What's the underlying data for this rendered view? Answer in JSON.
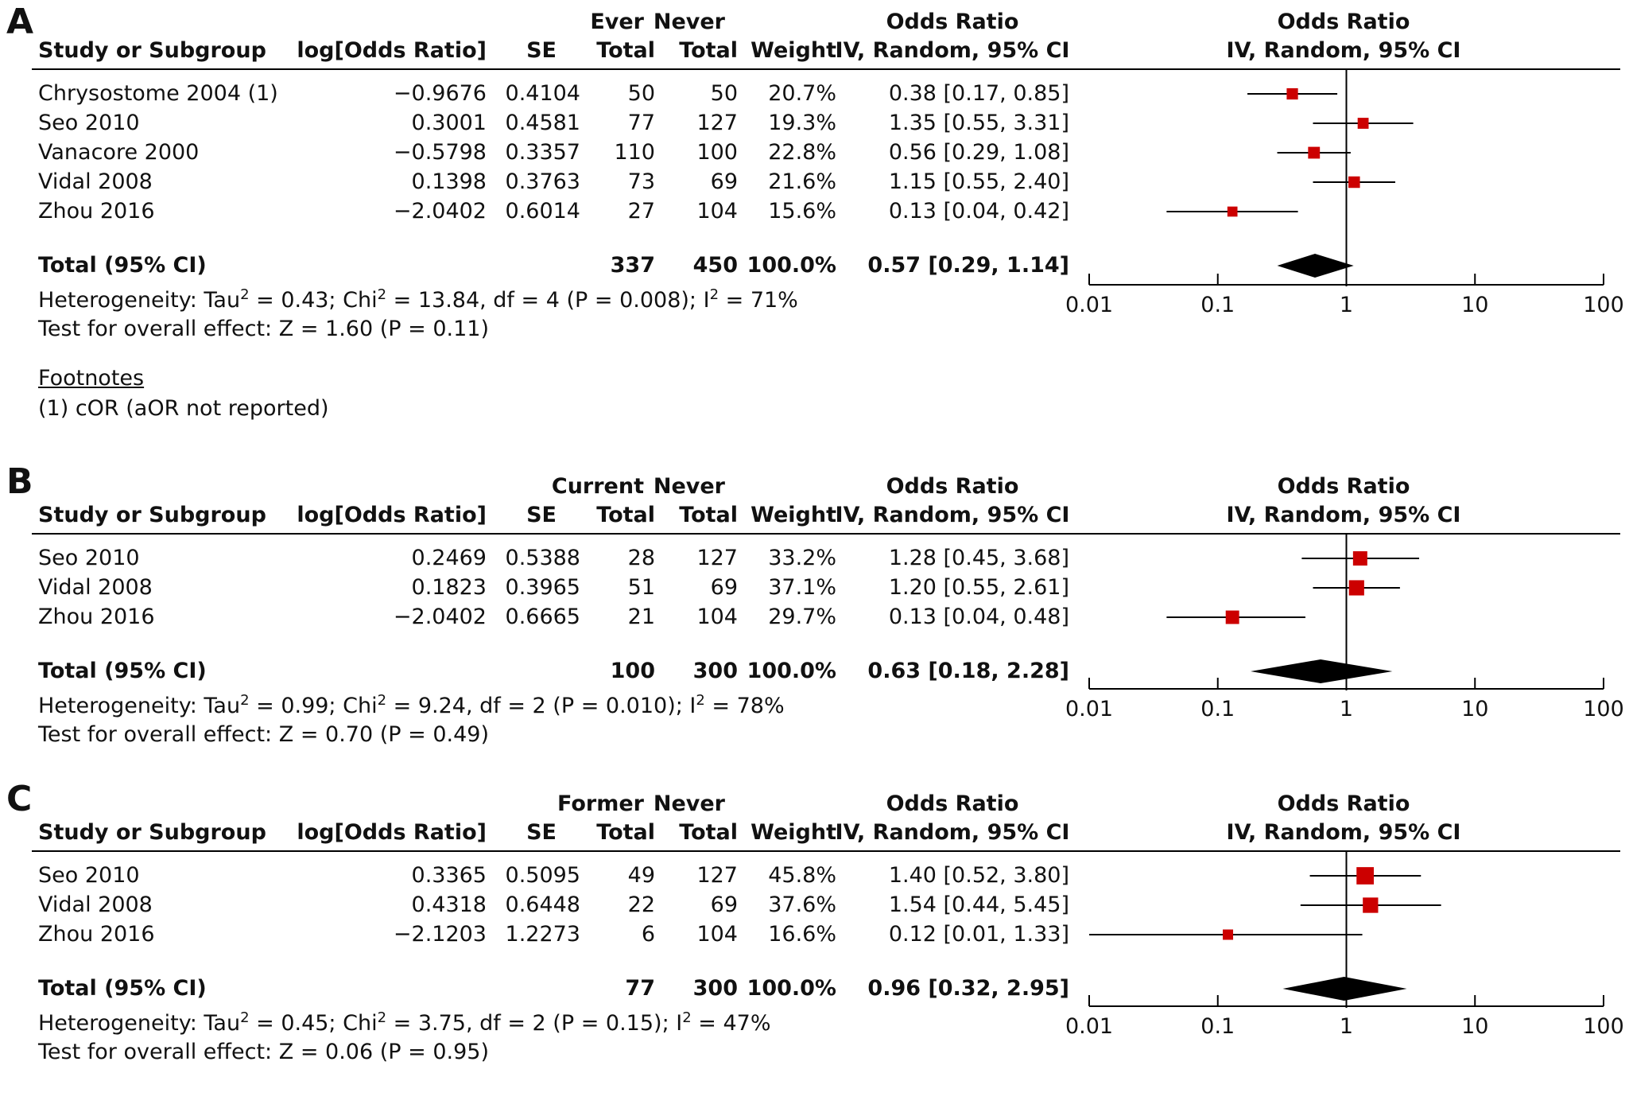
{
  "panels": [
    {
      "letter": "A",
      "group_label": "Ever",
      "comparison_label": "Never",
      "headers": {
        "study": "Study or Subgroup",
        "logor": "log[Odds Ratio]",
        "se": "SE",
        "total": "Total",
        "total2": "Total",
        "weight": "Weight",
        "or_title": "Odds Ratio",
        "or_method": "IV, Random, 95% CI",
        "plot_title": "Odds Ratio",
        "plot_method": "IV, Random, 95% CI"
      },
      "rows": [
        {
          "study": "Chrysostome 2004 (1)",
          "logor": "−0.9676",
          "se": "0.4104",
          "exp_total": "50",
          "ctrl_total": "50",
          "weight": "20.7%",
          "ci_text": "0.38 [0.17, 0.85]"
        },
        {
          "study": "Seo 2010",
          "logor": "0.3001",
          "se": "0.4581",
          "exp_total": "77",
          "ctrl_total": "127",
          "weight": "19.3%",
          "ci_text": "1.35 [0.55, 3.31]"
        },
        {
          "study": "Vanacore 2000",
          "logor": "−0.5798",
          "se": "0.3357",
          "exp_total": "110",
          "ctrl_total": "100",
          "weight": "22.8%",
          "ci_text": "0.56 [0.29, 1.08]"
        },
        {
          "study": "Vidal 2008",
          "logor": "0.1398",
          "se": "0.3763",
          "exp_total": "73",
          "ctrl_total": "69",
          "weight": "21.6%",
          "ci_text": "1.15 [0.55, 2.40]"
        },
        {
          "study": "Zhou 2016",
          "logor": "−2.0402",
          "se": "0.6014",
          "exp_total": "27",
          "ctrl_total": "104",
          "weight": "15.6%",
          "ci_text": "0.13 [0.04, 0.42]"
        }
      ],
      "total": {
        "label": "Total (95% CI)",
        "exp_total": "337",
        "ctrl_total": "450",
        "weight": "100.0%",
        "ci_text": "0.57 [0.29, 1.14]"
      },
      "heterogeneity": {
        "prefix": "Heterogeneity: Tau",
        "p1": " = 0.43; Chi",
        "p2": " = 13.84, df = 4 (P = 0.008); I",
        "p3": " = 71%",
        "sup": "2"
      },
      "overall": "Test for overall effect: Z = 1.60 (P = 0.11)",
      "footnotes_title": "Footnotes",
      "footnote": "(1) cOR (aOR not reported)"
    },
    {
      "letter": "B",
      "group_label": "Current",
      "comparison_label": "Never",
      "headers": {
        "study": "Study or Subgroup",
        "logor": "log[Odds Ratio]",
        "se": "SE",
        "total": "Total",
        "total2": "Total",
        "weight": "Weight",
        "or_title": "Odds Ratio",
        "or_method": "IV, Random, 95% CI",
        "plot_title": "Odds Ratio",
        "plot_method": "IV, Random, 95% CI"
      },
      "rows": [
        {
          "study": "Seo 2010",
          "logor": "0.2469",
          "se": "0.5388",
          "exp_total": "28",
          "ctrl_total": "127",
          "weight": "33.2%",
          "ci_text": "1.28 [0.45, 3.68]"
        },
        {
          "study": "Vidal 2008",
          "logor": "0.1823",
          "se": "0.3965",
          "exp_total": "51",
          "ctrl_total": "69",
          "weight": "37.1%",
          "ci_text": "1.20 [0.55, 2.61]"
        },
        {
          "study": "Zhou 2016",
          "logor": "−2.0402",
          "se": "0.6665",
          "exp_total": "21",
          "ctrl_total": "104",
          "weight": "29.7%",
          "ci_text": "0.13 [0.04, 0.48]"
        }
      ],
      "total": {
        "label": "Total (95% CI)",
        "exp_total": "100",
        "ctrl_total": "300",
        "weight": "100.0%",
        "ci_text": "0.63 [0.18, 2.28]"
      },
      "heterogeneity": {
        "prefix": "Heterogeneity: Tau",
        "p1": " = 0.99; Chi",
        "p2": " = 9.24, df = 2 (P = 0.010); I",
        "p3": " = 78%",
        "sup": "2"
      },
      "overall": "Test for overall effect: Z = 0.70 (P = 0.49)"
    },
    {
      "letter": "C",
      "group_label": "Former",
      "comparison_label": "Never",
      "headers": {
        "study": "Study or Subgroup",
        "logor": "log[Odds Ratio]",
        "se": "SE",
        "total": "Total",
        "total2": "Total",
        "weight": "Weight",
        "or_title": "Odds Ratio",
        "or_method": "IV, Random, 95% CI",
        "plot_title": "Odds Ratio",
        "plot_method": "IV, Random, 95% CI"
      },
      "rows": [
        {
          "study": "Seo 2010",
          "logor": "0.3365",
          "se": "0.5095",
          "exp_total": "49",
          "ctrl_total": "127",
          "weight": "45.8%",
          "ci_text": "1.40 [0.52, 3.80]"
        },
        {
          "study": "Vidal 2008",
          "logor": "0.4318",
          "se": "0.6448",
          "exp_total": "22",
          "ctrl_total": "69",
          "weight": "37.6%",
          "ci_text": "1.54 [0.44, 5.45]"
        },
        {
          "study": "Zhou 2016",
          "logor": "−2.1203",
          "se": "1.2273",
          "exp_total": "6",
          "ctrl_total": "104",
          "weight": "16.6%",
          "ci_text": "0.12 [0.01, 1.33]"
        }
      ],
      "total": {
        "label": "Total (95% CI)",
        "exp_total": "77",
        "ctrl_total": "300",
        "weight": "100.0%",
        "ci_text": "0.96 [0.32, 2.95]"
      },
      "heterogeneity": {
        "prefix": "Heterogeneity: Tau",
        "p1": " = 0.45; Chi",
        "p2": " = 3.75, df = 2 (P = 0.15); I",
        "p3": " = 47%",
        "sup": "2"
      },
      "overall": "Test for overall effect: Z = 0.06 (P = 0.95)"
    }
  ],
  "chart_data": [
    {
      "type": "forest",
      "scale": "log",
      "xlim": [
        0.01,
        100
      ],
      "ticks": [
        "0.01",
        "0.1",
        "1",
        "10",
        "100"
      ],
      "reference_line": 1,
      "marker_color": "#cc0000",
      "diamond_color": "#000000",
      "studies": [
        {
          "name": "Chrysostome 2004 (1)",
          "or": 0.38,
          "lo": 0.17,
          "hi": 0.85,
          "weight": 20.7
        },
        {
          "name": "Seo 2010",
          "or": 1.35,
          "lo": 0.55,
          "hi": 3.31,
          "weight": 19.3
        },
        {
          "name": "Vanacore 2000",
          "or": 0.56,
          "lo": 0.29,
          "hi": 1.08,
          "weight": 22.8
        },
        {
          "name": "Vidal 2008",
          "or": 1.15,
          "lo": 0.55,
          "hi": 2.4,
          "weight": 21.6
        },
        {
          "name": "Zhou 2016",
          "or": 0.13,
          "lo": 0.04,
          "hi": 0.42,
          "weight": 15.6
        }
      ],
      "pooled": {
        "or": 0.57,
        "lo": 0.29,
        "hi": 1.14
      }
    },
    {
      "type": "forest",
      "scale": "log",
      "xlim": [
        0.01,
        100
      ],
      "ticks": [
        "0.01",
        "0.1",
        "1",
        "10",
        "100"
      ],
      "reference_line": 1,
      "marker_color": "#cc0000",
      "diamond_color": "#000000",
      "studies": [
        {
          "name": "Seo 2010",
          "or": 1.28,
          "lo": 0.45,
          "hi": 3.68,
          "weight": 33.2
        },
        {
          "name": "Vidal 2008",
          "or": 1.2,
          "lo": 0.55,
          "hi": 2.61,
          "weight": 37.1
        },
        {
          "name": "Zhou 2016",
          "or": 0.13,
          "lo": 0.04,
          "hi": 0.48,
          "weight": 29.7
        }
      ],
      "pooled": {
        "or": 0.63,
        "lo": 0.18,
        "hi": 2.28
      }
    },
    {
      "type": "forest",
      "scale": "log",
      "xlim": [
        0.01,
        100
      ],
      "ticks": [
        "0.01",
        "0.1",
        "1",
        "10",
        "100"
      ],
      "reference_line": 1,
      "marker_color": "#cc0000",
      "diamond_color": "#000000",
      "studies": [
        {
          "name": "Seo 2010",
          "or": 1.4,
          "lo": 0.52,
          "hi": 3.8,
          "weight": 45.8
        },
        {
          "name": "Vidal 2008",
          "or": 1.54,
          "lo": 0.44,
          "hi": 5.45,
          "weight": 37.6
        },
        {
          "name": "Zhou 2016",
          "or": 0.12,
          "lo": 0.01,
          "hi": 1.33,
          "weight": 16.6
        }
      ],
      "pooled": {
        "or": 0.96,
        "lo": 0.32,
        "hi": 2.95
      }
    }
  ]
}
